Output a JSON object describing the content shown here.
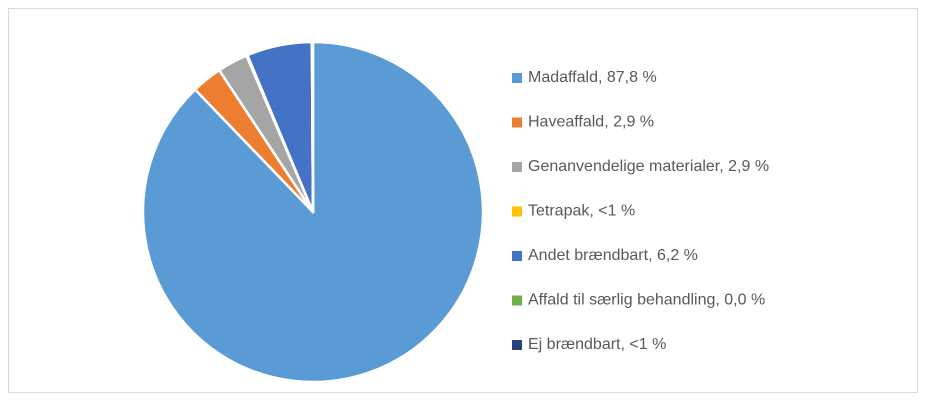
{
  "chart_data": {
    "type": "pie",
    "categories": [
      "Madaffald, 87,8 %",
      "Haveaffald, 2,9 %",
      "Genanvendelige materialer, 2,9 %",
      "Tetrapak, <1 %",
      "Andet brændbart, 6,2 %",
      "Affald til særlig behandling, 0,0 %",
      "Ej brændbart, <1 %"
    ],
    "values": [
      87.8,
      2.9,
      2.9,
      0.1,
      6.2,
      0.0,
      0.1
    ],
    "colors": [
      "#5b9bd5",
      "#ed7d31",
      "#a5a5a5",
      "#ffc000",
      "#4472c4",
      "#70ad47",
      "#264478"
    ],
    "legend": "right"
  }
}
